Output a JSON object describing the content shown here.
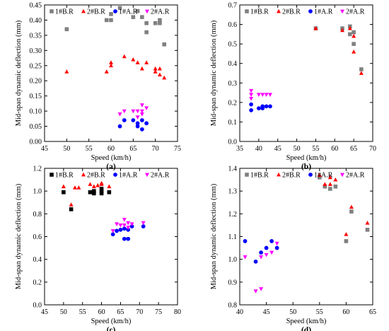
{
  "chart_data": [
    {
      "type": "scatter",
      "panel_label": "(a)",
      "xlabel": "Speed (km/h)",
      "ylabel": "Mid-span dynamic deflection (mm)",
      "xlim": [
        45,
        75
      ],
      "ylim": [
        0.0,
        0.45
      ],
      "xticks": [
        "45",
        "50",
        "55",
        "60",
        "65",
        "70",
        "75"
      ],
      "yticks": [
        "0.00",
        "0.05",
        "0.10",
        "0.15",
        "0.20",
        "0.25",
        "0.30",
        "0.35",
        "0.40",
        "0.45"
      ],
      "grid": false,
      "legend": "top",
      "series": [
        {
          "name": "1#B.R",
          "marker": "square",
          "color": "#808080",
          "x": [
            50,
            59,
            60,
            60,
            62,
            65,
            66,
            67,
            68,
            68,
            70,
            71,
            71,
            72
          ],
          "y": [
            0.37,
            0.4,
            0.4,
            0.42,
            0.44,
            0.41,
            0.43,
            0.41,
            0.39,
            0.36,
            0.39,
            0.4,
            0.39,
            0.32
          ]
        },
        {
          "name": "2#B.R",
          "marker": "triangle-up",
          "color": "#ff0000",
          "x": [
            50,
            59,
            60,
            60,
            63,
            65,
            66,
            67,
            68,
            70,
            70,
            71,
            71,
            72
          ],
          "y": [
            0.23,
            0.23,
            0.25,
            0.26,
            0.28,
            0.27,
            0.26,
            0.24,
            0.26,
            0.24,
            0.23,
            0.24,
            0.22,
            0.21
          ]
        },
        {
          "name": "1#A.R",
          "marker": "circle",
          "color": "#0000ff",
          "x": [
            62,
            63,
            65,
            66,
            66,
            67,
            67,
            68
          ],
          "y": [
            0.05,
            0.07,
            0.07,
            0.06,
            0.05,
            0.07,
            0.04,
            0.06
          ]
        },
        {
          "name": "2#A.R",
          "marker": "triangle-down",
          "color": "#ff00ff",
          "x": [
            62,
            63,
            65,
            66,
            66,
            67,
            67,
            67,
            68
          ],
          "y": [
            0.09,
            0.1,
            0.1,
            0.1,
            0.08,
            0.12,
            0.1,
            0.09,
            0.11
          ]
        }
      ]
    },
    {
      "type": "scatter",
      "panel_label": "(b)",
      "xlabel": "Speed (km/h)",
      "ylabel": "Mid-span dynamic deflection (mm)",
      "xlim": [
        35,
        70
      ],
      "ylim": [
        0.0,
        0.7
      ],
      "xticks": [
        "35",
        "40",
        "45",
        "50",
        "55",
        "60",
        "65",
        "70"
      ],
      "yticks": [
        "0.0",
        "0.1",
        "0.2",
        "0.3",
        "0.4",
        "0.5",
        "0.6",
        "0.7"
      ],
      "grid": false,
      "legend": "top",
      "series": [
        {
          "name": "1#B.R",
          "marker": "square",
          "color": "#808080",
          "x": [
            55,
            62,
            64,
            64,
            65,
            65,
            67
          ],
          "y": [
            0.58,
            0.58,
            0.59,
            0.55,
            0.56,
            0.5,
            0.37
          ]
        },
        {
          "name": "2#B.R",
          "marker": "triangle-up",
          "color": "#ff0000",
          "x": [
            55,
            62,
            64,
            65,
            65,
            67
          ],
          "y": [
            0.58,
            0.57,
            0.58,
            0.54,
            0.46,
            0.35
          ]
        },
        {
          "name": "1#A.R",
          "marker": "circle",
          "color": "#0000ff",
          "x": [
            38,
            38,
            40,
            41,
            41,
            42,
            43
          ],
          "y": [
            0.19,
            0.16,
            0.17,
            0.17,
            0.18,
            0.18,
            0.18
          ]
        },
        {
          "name": "2#A.R",
          "marker": "triangle-down",
          "color": "#ff00ff",
          "x": [
            38,
            38,
            38,
            40,
            41,
            42,
            43
          ],
          "y": [
            0.26,
            0.24,
            0.22,
            0.24,
            0.24,
            0.24,
            0.24
          ]
        }
      ]
    },
    {
      "type": "scatter",
      "panel_label": "(c)",
      "xlabel": "Speed (km/h)",
      "ylabel": "Mid-span dynamic deflection (mm)",
      "xlim": [
        45,
        80
      ],
      "ylim": [
        0.0,
        1.2
      ],
      "xticks": [
        "45",
        "50",
        "55",
        "60",
        "65",
        "70",
        "75",
        "80"
      ],
      "yticks": [
        "0.0",
        "0.2",
        "0.4",
        "0.6",
        "0.8",
        "1.0",
        "1.2"
      ],
      "grid": false,
      "legend": "top",
      "series": [
        {
          "name": "1#B.R",
          "marker": "square",
          "color": "#000000",
          "x": [
            50,
            52,
            57,
            58,
            58,
            60,
            60,
            60,
            62
          ],
          "y": [
            0.99,
            0.84,
            0.99,
            0.98,
            1.0,
            0.98,
            1.0,
            1.02,
            0.99
          ]
        },
        {
          "name": "2#B.R",
          "marker": "triangle-up",
          "color": "#ff0000",
          "x": [
            50,
            52,
            53,
            54,
            57,
            58,
            59,
            60,
            60,
            62
          ],
          "y": [
            1.04,
            0.88,
            1.03,
            1.03,
            1.06,
            1.04,
            1.05,
            1.06,
            1.07,
            1.04
          ]
        },
        {
          "name": "1#A.R",
          "marker": "circle",
          "color": "#0000ff",
          "x": [
            63,
            64,
            65,
            66,
            66,
            67,
            67,
            68,
            71
          ],
          "y": [
            0.62,
            0.65,
            0.66,
            0.67,
            0.58,
            0.66,
            0.58,
            0.69,
            0.69
          ]
        },
        {
          "name": "2#A.R",
          "marker": "triangle-down",
          "color": "#ff00ff",
          "x": [
            63,
            64,
            65,
            66,
            66,
            67,
            67,
            68,
            71
          ],
          "y": [
            0.65,
            0.71,
            0.7,
            0.75,
            0.7,
            0.72,
            0.68,
            0.71,
            0.72
          ]
        }
      ]
    },
    {
      "type": "scatter",
      "panel_label": "(d)",
      "xlabel": "Speed (km/h)",
      "ylabel": "Mid-span dynamic deflection (mm)",
      "xlim": [
        40,
        65
      ],
      "ylim": [
        0.8,
        1.4
      ],
      "xticks": [
        "40",
        "45",
        "50",
        "55",
        "60",
        "65"
      ],
      "yticks": [
        "0.8",
        "0.9",
        "1.0",
        "1.1",
        "1.2",
        "1.3",
        "1.4"
      ],
      "grid": false,
      "legend": "top",
      "series": [
        {
          "name": "1#B.R",
          "marker": "square",
          "color": "#808080",
          "x": [
            55,
            56,
            57,
            58,
            60,
            61,
            64
          ],
          "y": [
            1.36,
            1.32,
            1.31,
            1.32,
            1.08,
            1.21,
            1.13
          ]
        },
        {
          "name": "2#B.R",
          "marker": "triangle-up",
          "color": "#ff0000",
          "x": [
            55,
            56,
            57,
            57,
            58,
            60,
            61,
            64
          ],
          "y": [
            1.37,
            1.33,
            1.36,
            1.33,
            1.35,
            1.11,
            1.23,
            1.16
          ]
        },
        {
          "name": "1#A.R",
          "marker": "circle",
          "color": "#0000ff",
          "x": [
            41,
            43,
            44,
            45,
            46,
            47
          ],
          "y": [
            1.08,
            0.99,
            1.03,
            1.05,
            1.08,
            1.05
          ]
        },
        {
          "name": "2#A.R",
          "marker": "triangle-down",
          "color": "#ff00ff",
          "x": [
            41,
            43,
            44,
            44,
            45,
            46,
            47
          ],
          "y": [
            1.01,
            0.86,
            0.87,
            1.01,
            1.02,
            1.03,
            1.07
          ]
        }
      ]
    }
  ]
}
